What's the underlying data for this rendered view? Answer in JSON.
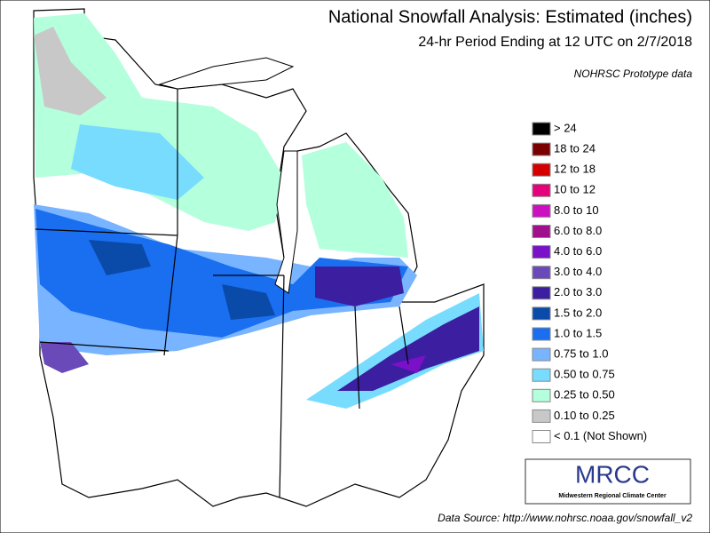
{
  "header": {
    "title": "National Snowfall Analysis: Estimated (inches)",
    "subtitle": "24-hr Period Ending at 12 UTC on 2/7/2018",
    "note": "NOHRSC Prototype data"
  },
  "legend": [
    {
      "label": "> 24",
      "color": "#000000"
    },
    {
      "label": "18 to 24",
      "color": "#7a0000"
    },
    {
      "label": "12 to 18",
      "color": "#d40000"
    },
    {
      "label": "10 to 12",
      "color": "#e6007a"
    },
    {
      "label": "8.0 to 10",
      "color": "#cc10c0"
    },
    {
      "label": "6.0 to 8.0",
      "color": "#a0108c"
    },
    {
      "label": "4.0 to 6.0",
      "color": "#7a10c8"
    },
    {
      "label": "3.0 to 4.0",
      "color": "#6a4ab8"
    },
    {
      "label": "2.0 to 3.0",
      "color": "#3c1ea0"
    },
    {
      "label": "1.5 to 2.0",
      "color": "#0a4aa8"
    },
    {
      "label": "1.0 to 1.5",
      "color": "#1a6ef0"
    },
    {
      "label": "0.75 to 1.0",
      "color": "#78b4ff"
    },
    {
      "label": "0.50 to 0.75",
      "color": "#78dcff"
    },
    {
      "label": "0.25 to 0.50",
      "color": "#b4ffdc"
    },
    {
      "label": "0.10 to 0.25",
      "color": "#c8c8c8"
    },
    {
      "label": "< 0.1 (Not Shown)",
      "color": "#ffffff"
    }
  ],
  "logo": {
    "name": "MRCC",
    "full_name": "Midwestern Regional Climate Center"
  },
  "footer": {
    "source": "Data Source: http://www.nohrsc.noaa.gov/snowfall_v2"
  }
}
